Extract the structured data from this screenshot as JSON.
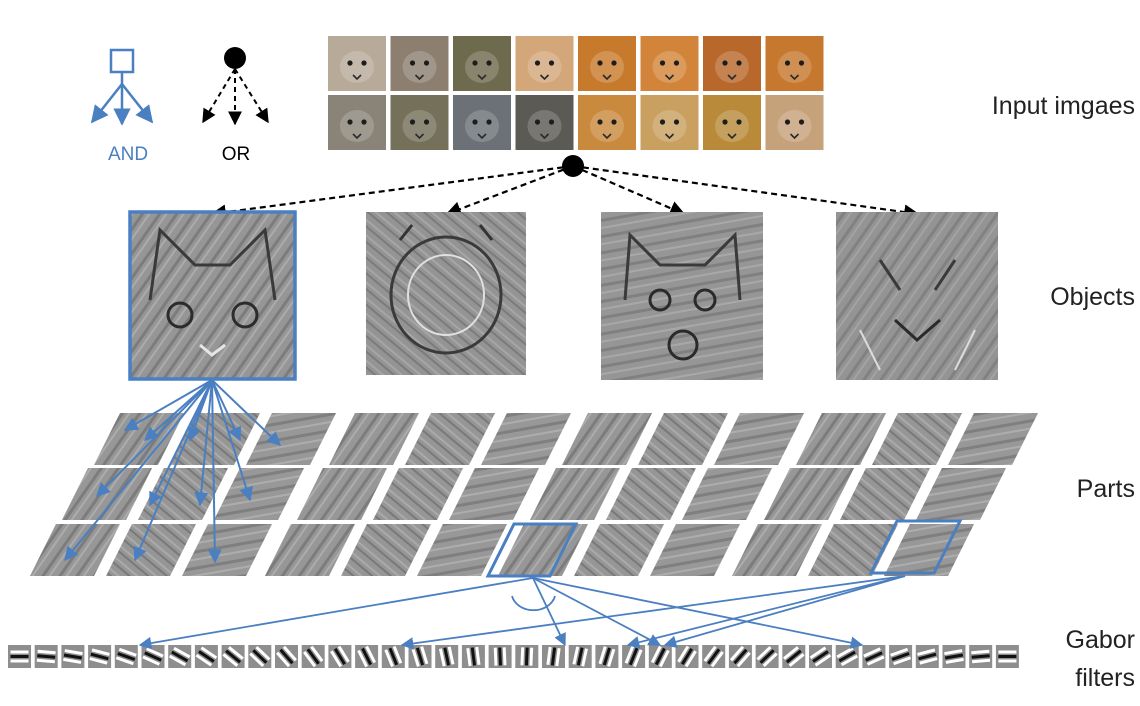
{
  "legend": {
    "and_label": "AND",
    "or_label": "OR"
  },
  "layers": {
    "input": "Input imgaes",
    "objects": "Objects",
    "parts": "Parts",
    "gabor_line1": "Gabor",
    "gabor_line2": "filters"
  },
  "colors": {
    "and_blue": "#4a7fc1",
    "or_black": "#000000",
    "label": "#222222",
    "filter_gray": "#8e8e8e"
  },
  "input_images": {
    "top_row": [
      "cat",
      "cat",
      "cat",
      "cat",
      "tiger",
      "tiger",
      "tiger",
      "tiger"
    ],
    "bottom_row": [
      "wolf",
      "wolf",
      "wolf",
      "wolf",
      "lion",
      "lion",
      "lion",
      "lion"
    ]
  },
  "objects": [
    "cat-template",
    "tiger-template",
    "wolf-template",
    "lion-template"
  ],
  "gabor_filter_count": 38
}
